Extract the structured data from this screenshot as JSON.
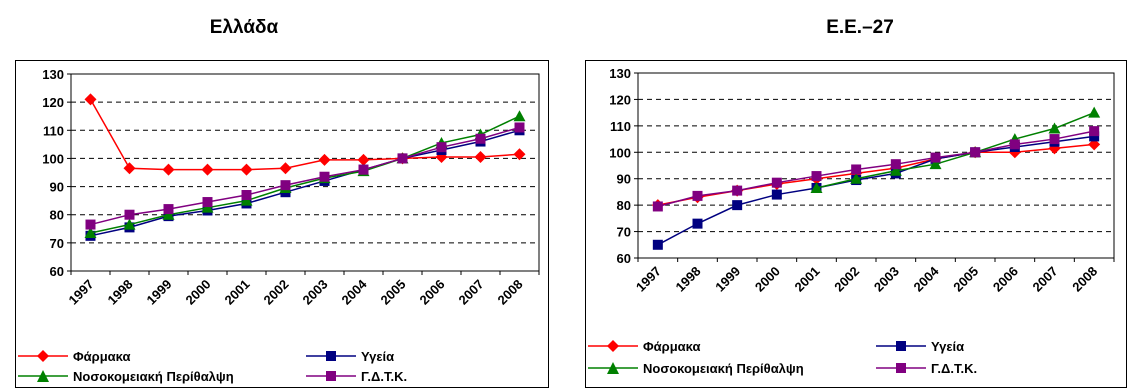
{
  "chart_data": [
    {
      "type": "line",
      "title": "Ελλάδα",
      "categories": [
        "1997",
        "1998",
        "1999",
        "2000",
        "2001",
        "2002",
        "2003",
        "2004",
        "2005",
        "2006",
        "2007",
        "2008"
      ],
      "ylim": [
        60,
        130
      ],
      "yticks": [
        60,
        70,
        80,
        90,
        100,
        110,
        120,
        130
      ],
      "grid": true,
      "legend": "bottom",
      "series": [
        {
          "name": "Φάρμακα",
          "color": "#ff0000",
          "marker": "diamond",
          "values": [
            121,
            96.5,
            96,
            96,
            96,
            96.5,
            99.5,
            99.5,
            100,
            100.5,
            100.5,
            101.5
          ]
        },
        {
          "name": "Υγεία",
          "color": "#000080",
          "marker": "square",
          "values": [
            72.5,
            75.5,
            79.5,
            81.5,
            84,
            88,
            92,
            96,
            100,
            103,
            106,
            110
          ]
        },
        {
          "name": "Νοσοκομειακή Περίθαλψη",
          "color": "#008000",
          "marker": "triangle",
          "values": [
            73.5,
            76.5,
            80,
            82.5,
            85,
            89.5,
            93,
            95.5,
            100,
            105.5,
            108.5,
            115
          ]
        },
        {
          "name": "Γ.Δ.Τ.Κ.",
          "color": "#800080",
          "marker": "square",
          "values": [
            76.5,
            80,
            82,
            84.5,
            87,
            90.5,
            93.5,
            96,
            100,
            104,
            107,
            111
          ]
        }
      ]
    },
    {
      "type": "line",
      "title": "Ε.Ε.–27",
      "categories": [
        "1997",
        "1998",
        "1999",
        "2000",
        "2001",
        "2002",
        "2003",
        "2004",
        "2005",
        "2006",
        "2007",
        "2008"
      ],
      "ylim": [
        60,
        130
      ],
      "yticks": [
        60,
        70,
        80,
        90,
        100,
        110,
        120,
        130
      ],
      "grid": true,
      "legend": "bottom",
      "series": [
        {
          "name": "Φάρμακα",
          "color": "#ff0000",
          "marker": "diamond",
          "values": [
            80,
            83,
            85.5,
            88,
            90,
            92,
            94,
            97.5,
            100,
            100,
            101.5,
            103
          ]
        },
        {
          "name": "Υγεία",
          "color": "#000080",
          "marker": "square",
          "values": [
            65,
            73,
            80,
            84,
            86.5,
            89.5,
            92,
            97.5,
            100,
            102,
            104,
            106
          ]
        },
        {
          "name": "Νοσοκομειακή Περίθαλψη",
          "color": "#008000",
          "marker": "triangle",
          "values": [
            null,
            null,
            null,
            null,
            86.5,
            90,
            93,
            95.5,
            100,
            105,
            109,
            115
          ]
        },
        {
          "name": "Γ.Δ.Τ.Κ.",
          "color": "#800080",
          "marker": "square",
          "values": [
            79.5,
            83.5,
            85.5,
            88.5,
            91,
            93.5,
            95.5,
            98,
            100,
            103,
            105,
            108
          ]
        }
      ]
    }
  ]
}
